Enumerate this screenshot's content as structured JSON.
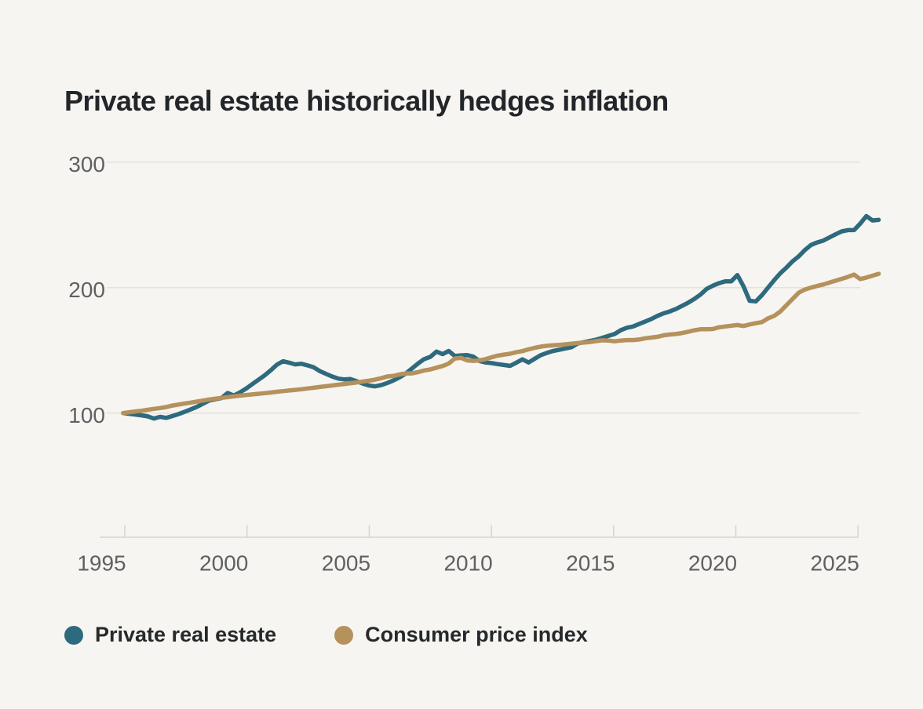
{
  "page": {
    "title": "Private real estate historically hedges inflation"
  },
  "chart_data": {
    "type": "line",
    "title": "Private real estate historically hedges inflation",
    "xlabel": "",
    "ylabel": "",
    "x_start_year": 1995,
    "x_step_years": 0.25,
    "x_range": [
      1995,
      2025.75
    ],
    "ylim": [
      85,
      310
    ],
    "y_gridlines": [
      100,
      200,
      300
    ],
    "y_tick_labels": [
      "100",
      "200",
      "300"
    ],
    "x_tick_labels": [
      "1995",
      "2000",
      "2005",
      "2010",
      "2015",
      "2020",
      "2025"
    ],
    "grid": "horizontal",
    "legend_position": "bottom-left",
    "background_color": "#f7f5f1",
    "series": [
      {
        "name": "Private real estate",
        "color": "#2e6a7e",
        "values": [
          100,
          99.4,
          98.8,
          98.2,
          97.4,
          95.6,
          97.0,
          96.2,
          97.6,
          99.2,
          101.0,
          103.0,
          105.0,
          107.5,
          110.0,
          111.0,
          112.0,
          116.0,
          114.0,
          116.5,
          119.5,
          123.0,
          126.5,
          130.0,
          134.0,
          138.5,
          141.3,
          140.2,
          138.8,
          139.3,
          138.0,
          136.5,
          133.5,
          131.3,
          129.2,
          127.5,
          126.8,
          127.1,
          125.4,
          123.5,
          122.0,
          121.3,
          122.3,
          124.0,
          126.0,
          128.5,
          131.5,
          135.5,
          139.5,
          143.0,
          144.8,
          149.0,
          147.0,
          149.5,
          145.5,
          146.0,
          146.2,
          145.0,
          141.5,
          140.3,
          139.8,
          139.0,
          138.3,
          137.6,
          140.2,
          142.8,
          140.3,
          143.3,
          146.2,
          148.0,
          149.5,
          150.5,
          151.5,
          152.5,
          155.5,
          156.5,
          157.5,
          158.5,
          160.0,
          161.5,
          163.0,
          166.0,
          168.0,
          169.0,
          171.0,
          173.0,
          175.0,
          177.5,
          179.5,
          181.0,
          183.0,
          185.5,
          188.0,
          191.0,
          194.5,
          199.0,
          201.5,
          203.5,
          205.0,
          205.0,
          210.0,
          201.0,
          189.5,
          189.0,
          194.0,
          200.0,
          206.0,
          211.5,
          216.0,
          221.0,
          225.0,
          230.0,
          234.0,
          236.0,
          237.5,
          240.0,
          242.5,
          244.8,
          245.8,
          245.8,
          251.0,
          257.0,
          253.5,
          254.0
        ]
      },
      {
        "name": "Consumer price index",
        "color": "#b5915c",
        "values": [
          100.0,
          100.7,
          101.3,
          101.9,
          102.6,
          103.4,
          104.0,
          104.8,
          106.0,
          106.8,
          107.6,
          108.4,
          109.2,
          110.0,
          110.8,
          111.5,
          112.1,
          112.7,
          113.3,
          113.9,
          114.4,
          114.9,
          115.4,
          115.9,
          116.4,
          117.0,
          117.5,
          118.0,
          118.5,
          119.0,
          119.6,
          120.2,
          120.8,
          121.4,
          122.0,
          122.6,
          123.2,
          123.8,
          124.4,
          125.1,
          125.8,
          126.6,
          127.8,
          129.2,
          129.6,
          130.8,
          131.6,
          131.6,
          132.6,
          134.0,
          134.8,
          136.2,
          137.5,
          139.5,
          143.5,
          144.0,
          142.0,
          141.6,
          142.0,
          143.0,
          144.5,
          145.8,
          146.6,
          147.3,
          148.5,
          149.4,
          150.8,
          152.0,
          153.0,
          153.6,
          154.0,
          154.4,
          154.8,
          155.3,
          155.8,
          156.2,
          156.6,
          157.4,
          158.0,
          157.8,
          157.2,
          157.8,
          158.2,
          158.2,
          158.6,
          159.6,
          160.2,
          160.8,
          162.0,
          162.6,
          163.0,
          163.8,
          164.8,
          166.0,
          166.8,
          166.8,
          167.0,
          168.4,
          169.0,
          169.6,
          170.2,
          169.4,
          170.6,
          171.6,
          172.5,
          175.5,
          177.5,
          181.0,
          186.0,
          191.0,
          196.0,
          198.5,
          200.0,
          201.3,
          202.5,
          204.0,
          205.5,
          207.0,
          208.5,
          210.4,
          206.8,
          208.0,
          209.5,
          211.0
        ]
      }
    ]
  },
  "colors": {
    "background": "#f7f5f1",
    "grid": "#e4e1db",
    "axis": "#d7d4cf",
    "tick_label": "#5f6063",
    "title": "#222529",
    "private_real_estate": "#2e6a7e",
    "consumer_price_index": "#b5915c"
  }
}
